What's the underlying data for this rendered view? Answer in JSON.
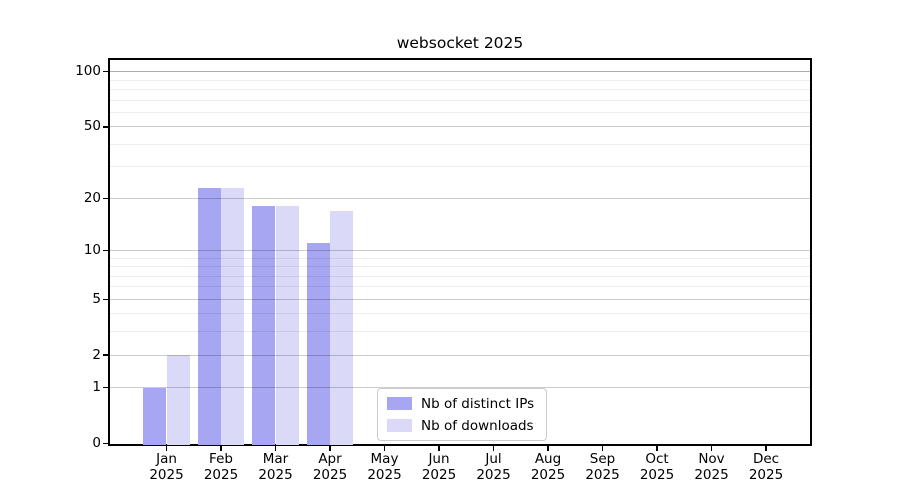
{
  "figure": {
    "background": "#ffffff"
  },
  "chart_data": {
    "type": "bar",
    "title": "websocket 2025",
    "y_scale": "log1p",
    "categories": [
      "Jan",
      "Feb",
      "Mar",
      "Apr",
      "May",
      "Jun",
      "Jul",
      "Aug",
      "Sep",
      "Oct",
      "Nov",
      "Dec"
    ],
    "x_year": "2025",
    "series": [
      {
        "name": "Nb of distinct IPs",
        "color": "#a6a6f2",
        "values": [
          1,
          23,
          18,
          11,
          0,
          0,
          0,
          0,
          0,
          0,
          0,
          0
        ]
      },
      {
        "name": "Nb of downloads",
        "color": "#dadaf8",
        "values": [
          2,
          23,
          18,
          17,
          0,
          0,
          0,
          0,
          0,
          0,
          0,
          0
        ]
      }
    ],
    "y_major_ticks": [
      0,
      1,
      2,
      5,
      10,
      20,
      50,
      100
    ],
    "y_minor_gridlines": [
      3,
      4,
      6,
      7,
      8,
      9,
      30,
      40,
      60,
      70,
      80,
      90
    ],
    "ylim": [
      0,
      116
    ],
    "grid": true,
    "legend": {
      "position": "lower center"
    }
  }
}
